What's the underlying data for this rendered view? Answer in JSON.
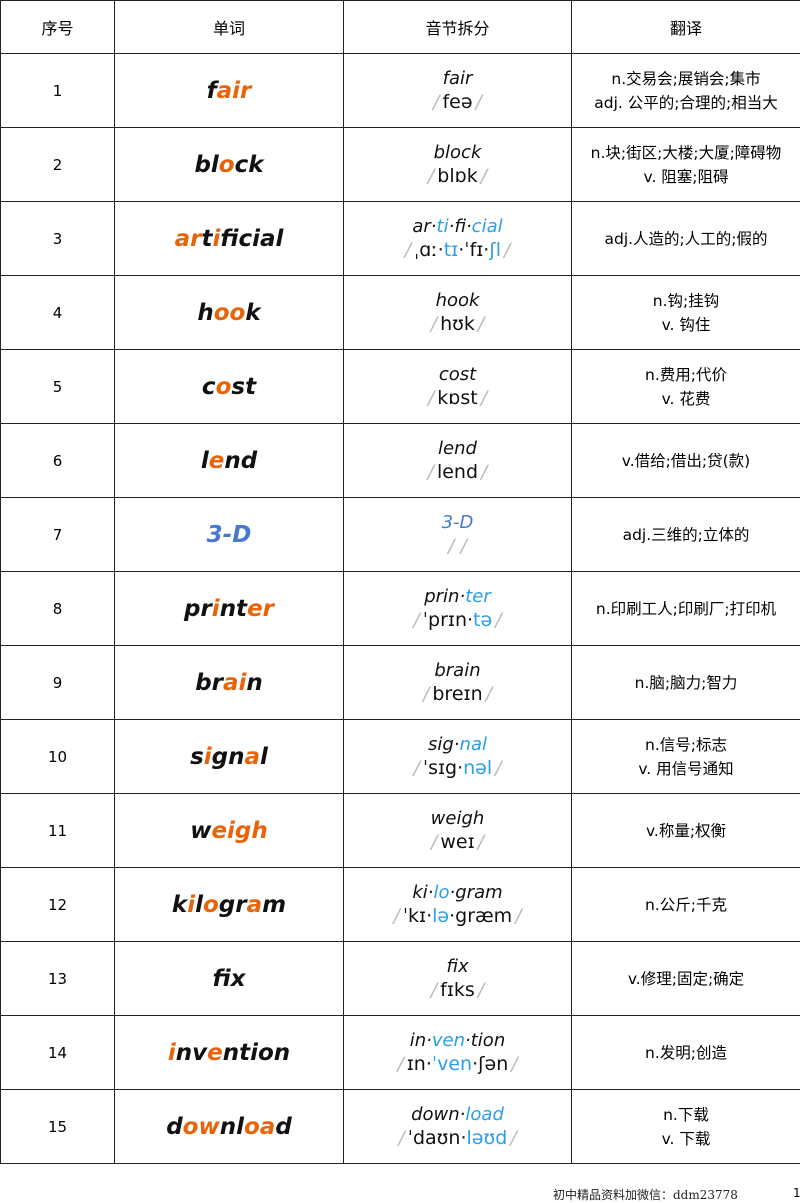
{
  "colors": {
    "o": "#e8630a",
    "k": "#111111",
    "b": "#2a9ee8",
    "d": "#4a78d0",
    "slash": "#bbbbbb"
  },
  "headers": [
    "序号",
    "单词",
    "音节拆分",
    "翻译"
  ],
  "rows": [
    {
      "n": "1",
      "word": [
        [
          "f",
          "k"
        ],
        [
          "air",
          "o"
        ]
      ],
      "syl": [
        [
          "fair",
          "k"
        ]
      ],
      "ipa": [
        [
          "feə",
          "k"
        ]
      ],
      "tr": [
        "n.交易会;展销会;集市",
        "adj. 公平的;合理的;相当大"
      ]
    },
    {
      "n": "2",
      "word": [
        [
          "bl",
          "k"
        ],
        [
          "o",
          "o"
        ],
        [
          "ck",
          "k"
        ]
      ],
      "syl": [
        [
          "block",
          "k"
        ]
      ],
      "ipa": [
        [
          "blɒk",
          "k"
        ]
      ],
      "tr": [
        "n.块;街区;大楼;大厦;障碍物",
        "v. 阻塞;阻碍"
      ]
    },
    {
      "n": "3",
      "word": [
        [
          "ar",
          "o"
        ],
        [
          "t",
          "k"
        ],
        [
          "i",
          "o"
        ],
        [
          "f",
          "k"
        ],
        [
          "i",
          "o"
        ],
        [
          "cial",
          "k"
        ]
      ],
      "syl": [
        [
          "ar·",
          "k"
        ],
        [
          "ti",
          "b"
        ],
        [
          "·fi·",
          "k"
        ],
        [
          "cial",
          "b"
        ]
      ],
      "ipa": [
        [
          "ˌɑː·",
          "k"
        ],
        [
          "tɪ",
          "b"
        ],
        [
          "·ˈfɪ·",
          "k"
        ],
        [
          "ʃl",
          "b"
        ]
      ],
      "tr": [
        "adj.人造的;人工的;假的"
      ]
    },
    {
      "n": "4",
      "word": [
        [
          "h",
          "k"
        ],
        [
          "oo",
          "o"
        ],
        [
          "k",
          "k"
        ]
      ],
      "syl": [
        [
          "hook",
          "k"
        ]
      ],
      "ipa": [
        [
          "hʊk",
          "k"
        ]
      ],
      "tr": [
        "n.钩;挂钩",
        "v. 钩住"
      ]
    },
    {
      "n": "5",
      "word": [
        [
          "c",
          "k"
        ],
        [
          "o",
          "o"
        ],
        [
          "st",
          "k"
        ]
      ],
      "syl": [
        [
          "cost",
          "k"
        ]
      ],
      "ipa": [
        [
          "kɒst",
          "k"
        ]
      ],
      "tr": [
        "n.费用;代价",
        "v. 花费"
      ]
    },
    {
      "n": "6",
      "word": [
        [
          "l",
          "k"
        ],
        [
          "e",
          "o"
        ],
        [
          "nd",
          "k"
        ]
      ],
      "syl": [
        [
          "lend",
          "k"
        ]
      ],
      "ipa": [
        [
          "lend",
          "k"
        ]
      ],
      "tr": [
        "v.借给;借出;贷(款)"
      ]
    },
    {
      "n": "7",
      "word": [
        [
          "3-D",
          "d"
        ]
      ],
      "syl": [
        [
          "3-D",
          "d"
        ]
      ],
      "ipa": [],
      "tr": [
        "adj.三维的;立体的"
      ]
    },
    {
      "n": "8",
      "word": [
        [
          "pr",
          "k"
        ],
        [
          "i",
          "o"
        ],
        [
          "nt",
          "k"
        ],
        [
          "er",
          "o"
        ]
      ],
      "syl": [
        [
          "prin·",
          "k"
        ],
        [
          "ter",
          "b"
        ]
      ],
      "ipa": [
        [
          "ˈprɪn·",
          "k"
        ],
        [
          "tə",
          "b"
        ]
      ],
      "tr": [
        "n.印刷工人;印刷厂;打印机"
      ]
    },
    {
      "n": "9",
      "word": [
        [
          "br",
          "k"
        ],
        [
          "ai",
          "o"
        ],
        [
          "n",
          "k"
        ]
      ],
      "syl": [
        [
          "brain",
          "k"
        ]
      ],
      "ipa": [
        [
          "breɪn",
          "k"
        ]
      ],
      "tr": [
        "n.脑;脑力;智力"
      ]
    },
    {
      "n": "10",
      "word": [
        [
          "s",
          "k"
        ],
        [
          "i",
          "o"
        ],
        [
          "gn",
          "k"
        ],
        [
          "a",
          "o"
        ],
        [
          "l",
          "k"
        ]
      ],
      "syl": [
        [
          "sig·",
          "k"
        ],
        [
          "nal",
          "b"
        ]
      ],
      "ipa": [
        [
          "ˈsɪg·",
          "k"
        ],
        [
          "nəl",
          "b"
        ]
      ],
      "tr": [
        "n.信号;标志",
        "v. 用信号通知"
      ]
    },
    {
      "n": "11",
      "word": [
        [
          "w",
          "k"
        ],
        [
          "eigh",
          "o"
        ]
      ],
      "syl": [
        [
          "weigh",
          "k"
        ]
      ],
      "ipa": [
        [
          "weɪ",
          "k"
        ]
      ],
      "tr": [
        "v.称量;权衡"
      ]
    },
    {
      "n": "12",
      "word": [
        [
          "k",
          "k"
        ],
        [
          "i",
          "o"
        ],
        [
          "l",
          "k"
        ],
        [
          "o",
          "o"
        ],
        [
          "gr",
          "k"
        ],
        [
          "a",
          "o"
        ],
        [
          "m",
          "k"
        ]
      ],
      "syl": [
        [
          "ki·",
          "k"
        ],
        [
          "lo",
          "b"
        ],
        [
          "·gram",
          "k"
        ]
      ],
      "ipa": [
        [
          "ˈkɪ·",
          "k"
        ],
        [
          "lə",
          "b"
        ],
        [
          "·græm",
          "k"
        ]
      ],
      "tr": [
        "n.公斤;千克"
      ]
    },
    {
      "n": "13",
      "word": [
        [
          "f",
          "k"
        ],
        [
          "i",
          "o"
        ],
        [
          "x",
          "k"
        ]
      ],
      "syl": [
        [
          "fix",
          "k"
        ]
      ],
      "ipa": [
        [
          "fɪks",
          "k"
        ]
      ],
      "tr": [
        "v.修理;固定;确定"
      ]
    },
    {
      "n": "14",
      "word": [
        [
          "i",
          "o"
        ],
        [
          "nv",
          "k"
        ],
        [
          "e",
          "o"
        ],
        [
          "ntion",
          "k"
        ]
      ],
      "syl": [
        [
          "in·",
          "k"
        ],
        [
          "ven",
          "b"
        ],
        [
          "·tion",
          "k"
        ]
      ],
      "ipa": [
        [
          "ɪn·",
          "k"
        ],
        [
          "ˈven",
          "b"
        ],
        [
          "·ʃən",
          "k"
        ]
      ],
      "tr": [
        "n.发明;创造"
      ]
    },
    {
      "n": "15",
      "word": [
        [
          "d",
          "k"
        ],
        [
          "ow",
          "o"
        ],
        [
          "nl",
          "k"
        ],
        [
          "oa",
          "o"
        ],
        [
          "d",
          "k"
        ]
      ],
      "syl": [
        [
          "down·",
          "k"
        ],
        [
          "load",
          "b"
        ]
      ],
      "ipa": [
        [
          "ˈdaʊn·",
          "k"
        ],
        [
          "ləʊd",
          "b"
        ]
      ],
      "tr": [
        "n.下载",
        "v. 下载"
      ]
    }
  ],
  "footer": {
    "text": "初中精品资料加微信：ddm23778",
    "page": "1"
  }
}
